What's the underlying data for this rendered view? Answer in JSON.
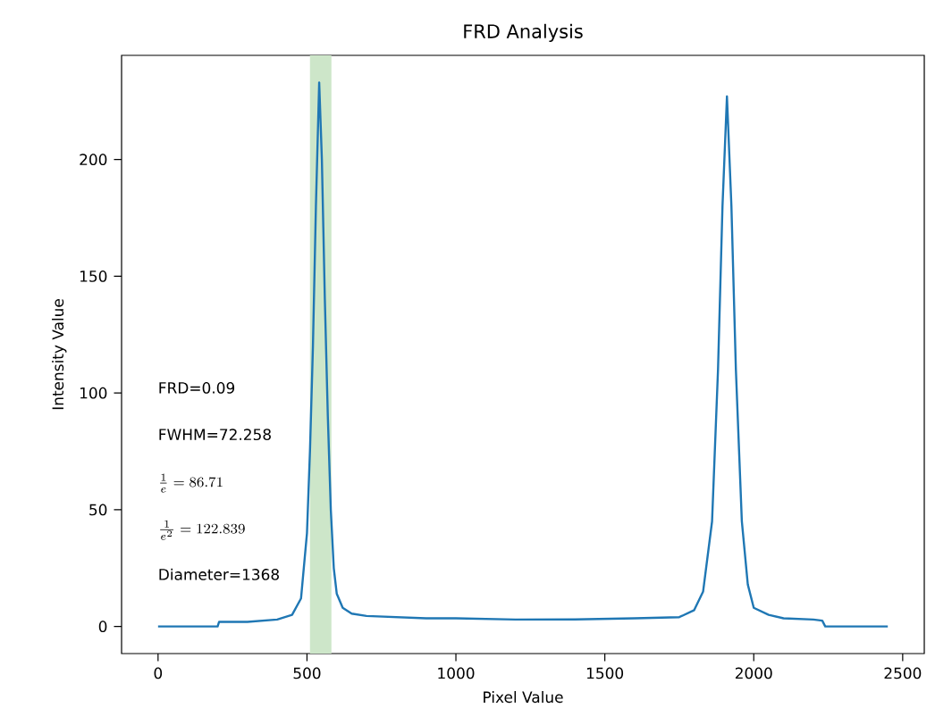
{
  "chart_data": {
    "type": "line",
    "title": "FRD Analysis",
    "xlabel": "Pixel Value",
    "ylabel": "Intensity Value",
    "xlim": [
      -122.5,
      2572.5
    ],
    "ylim": [
      -11.6,
      244.6
    ],
    "xticks": [
      0,
      500,
      1000,
      1500,
      2000,
      2500
    ],
    "yticks": [
      0,
      50,
      100,
      150,
      200
    ],
    "bands": [
      {
        "axis": "x",
        "from": 510,
        "to": 582,
        "color": "#cde6c9"
      }
    ],
    "annotations": [
      "FRD=0.09",
      "FWHM=72.258",
      "\\frac{1}{e}=86.71",
      "\\frac{1}{e^2}=122.839",
      "Diameter=1368"
    ],
    "series": [
      {
        "color": "#1f77b4",
        "x": [
          0,
          200,
          205,
          300,
          400,
          450,
          480,
          500,
          510,
          520,
          530,
          541,
          550,
          560,
          570,
          580,
          590,
          600,
          620,
          650,
          700,
          800,
          900,
          1000,
          1200,
          1400,
          1600,
          1750,
          1800,
          1830,
          1860,
          1880,
          1895,
          1910,
          1925,
          1940,
          1960,
          1980,
          2000,
          2050,
          2100,
          2200,
          2230,
          2240,
          2450
        ],
        "values": [
          0,
          0,
          2,
          2,
          3,
          5,
          12,
          40,
          75,
          120,
          180,
          233,
          200,
          140,
          90,
          50,
          25,
          14,
          8,
          5.5,
          4.5,
          4,
          3.5,
          3.5,
          3,
          3,
          3.5,
          4,
          7,
          15,
          45,
          110,
          180,
          227,
          180,
          110,
          45,
          18,
          8,
          5,
          3.5,
          3,
          2.5,
          0,
          0
        ]
      }
    ]
  }
}
